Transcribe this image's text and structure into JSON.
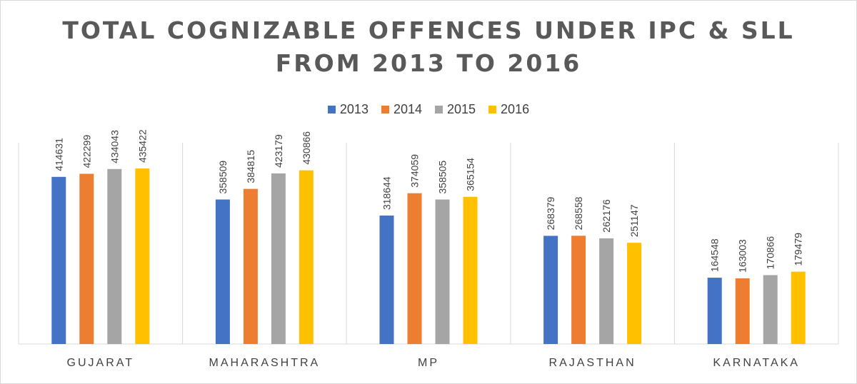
{
  "chart_data": {
    "type": "bar",
    "title_line1": "TOTAL COGNIZABLE OFFENCES UNDER IPC & SLL",
    "title_line2": "FROM 2013 TO 2016",
    "categories": [
      "GUJARAT",
      "MAHARASHTRA",
      "MP",
      "RAJASTHAN",
      "KARNATAKA"
    ],
    "series": [
      {
        "name": "2013",
        "color": "#4472C4",
        "values": [
          414631,
          358509,
          318644,
          268379,
          164548
        ]
      },
      {
        "name": "2014",
        "color": "#ED7D31",
        "values": [
          422299,
          384815,
          374059,
          268558,
          163003
        ]
      },
      {
        "name": "2015",
        "color": "#A5A5A5",
        "values": [
          434043,
          423179,
          358505,
          262176,
          170866
        ]
      },
      {
        "name": "2016",
        "color": "#FFC000",
        "values": [
          435422,
          430866,
          365154,
          251147,
          179479
        ]
      }
    ],
    "ylim": [
      0,
      455000
    ],
    "grid": false,
    "legend_position": "top",
    "data_labels": "rotated-vertical"
  }
}
